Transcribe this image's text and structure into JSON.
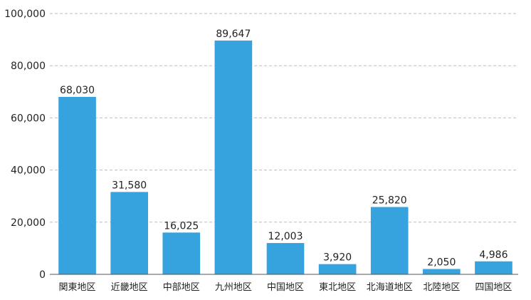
{
  "chart_data": {
    "type": "bar",
    "categories": [
      "関東地区",
      "近畿地区",
      "中部地区",
      "九州地区",
      "中国地区",
      "東北地区",
      "北海道地区",
      "北陸地区",
      "四国地区"
    ],
    "values": [
      68030,
      31580,
      16025,
      89647,
      12003,
      3920,
      25820,
      2050,
      4986
    ],
    "data_labels": [
      "68,030",
      "31,580",
      "16,025",
      "89,647",
      "12,003",
      "3,920",
      "25,820",
      "2,050",
      "4,986"
    ],
    "ylim": [
      0,
      100000
    ],
    "y_ticks": [
      0,
      20000,
      40000,
      60000,
      80000,
      100000
    ],
    "y_tick_labels": [
      "0",
      "20,000",
      "40,000",
      "60,000",
      "80,000",
      "100,000"
    ],
    "title": "",
    "xlabel": "",
    "ylabel": "",
    "grid": true,
    "bar_color": "#36a2de",
    "grid_color": "#bdbdbd",
    "text_color": "#222222",
    "axis_color": "#555555"
  }
}
